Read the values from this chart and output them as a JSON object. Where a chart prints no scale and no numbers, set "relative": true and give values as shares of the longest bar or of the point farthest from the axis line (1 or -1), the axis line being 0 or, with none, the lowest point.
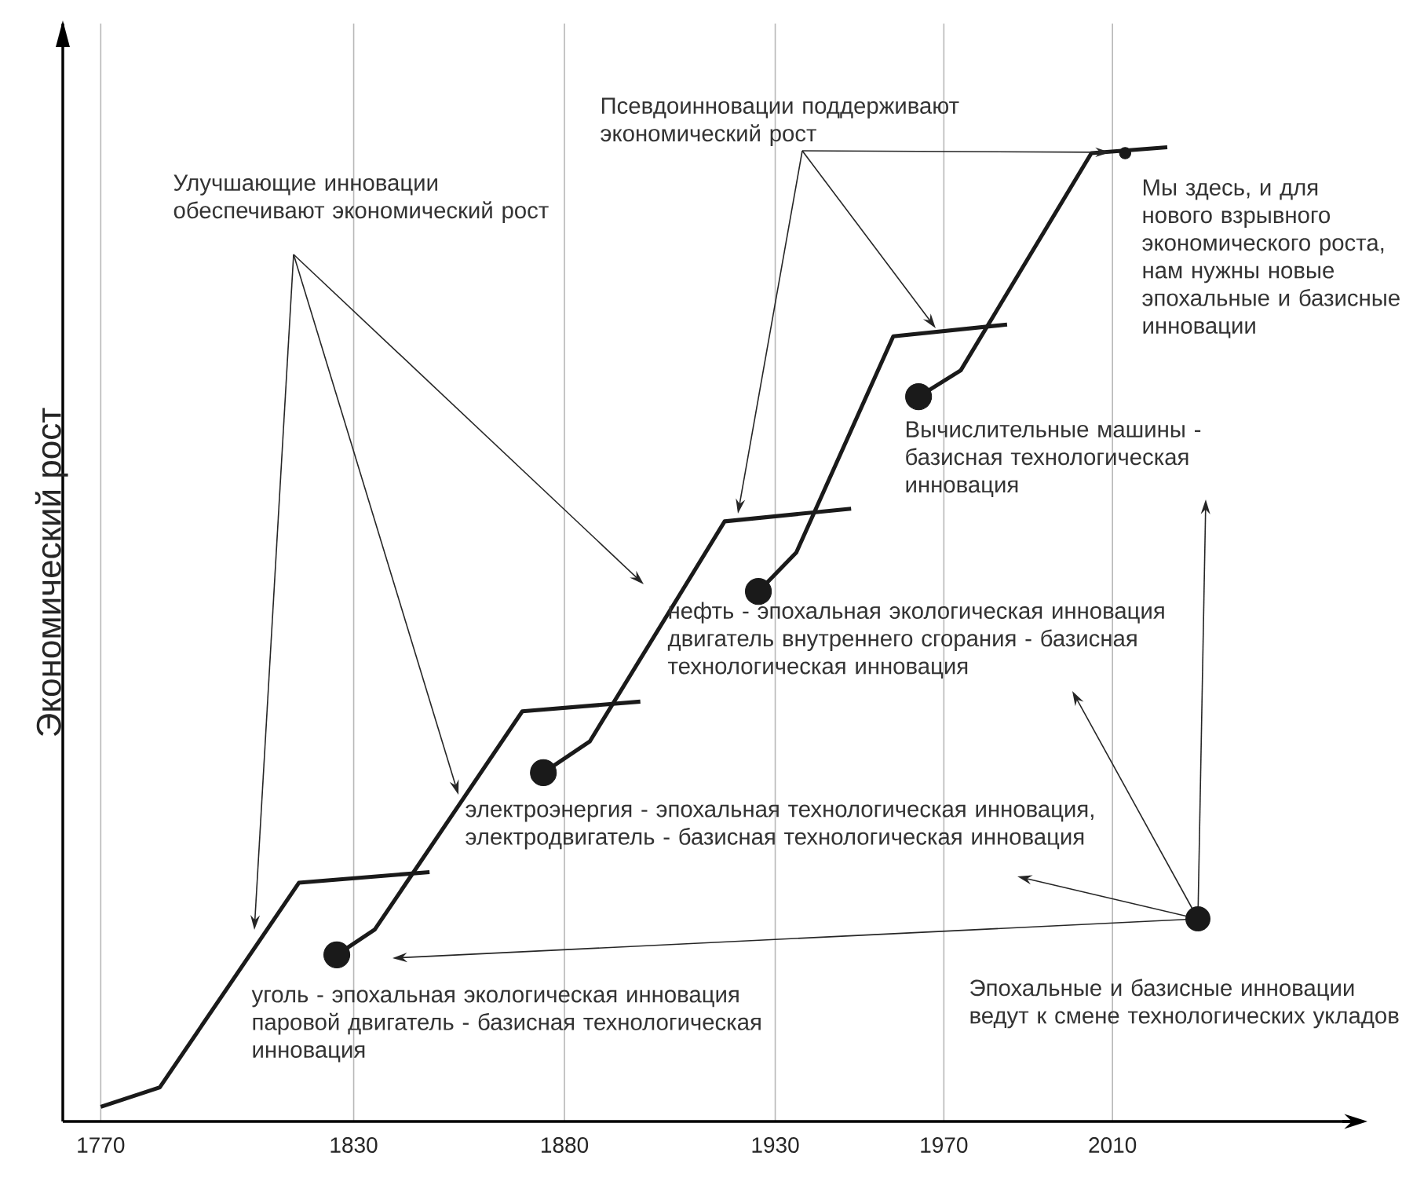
{
  "chart_data": {
    "type": "line",
    "ylabel": "Экономический рост",
    "annotations": [
      "Улучшающие инновации обеспечивают экономический рост",
      "Псевдоинновации поддерживают экономический рост",
      "Мы здесь, и для нового взрывного экономического роста, нам нужны новые эпохальные и базисные инновации",
      "Вычислительные машины - базисная технологическая инновация",
      "нефть - эпохальная экологическая инновация двигатель внутреннего сгорания - базисная технологическая инновация",
      "электроэнергия - эпохальная технологическая инновация, электродвигатель - базисная технологическая инновация",
      "уголь - эпохальная экологическая инновация паровой двигатель - базисная технологическая инновация",
      "Эпохальные и базисные инновации ведут к смене технологических укладов"
    ],
    "xlim": [
      1761,
      2069
    ],
    "xticks": [
      1770,
      1830,
      1880,
      1930,
      1970,
      2010
    ],
    "grid": "x",
    "relative": true,
    "series": [
      {
        "x": [
          1770,
          1784,
          1817,
          1848
        ],
        "values": [
          0.015,
          0.035,
          0.245,
          0.256
        ],
        "color": "#1a1a1a"
      },
      {
        "x": [
          1826,
          1835,
          1870,
          1898
        ],
        "values": [
          0.171,
          0.197,
          0.421,
          0.431
        ],
        "color": "#1a1a1a"
      },
      {
        "x": [
          1875,
          1886,
          1918,
          1948
        ],
        "values": [
          0.358,
          0.39,
          0.616,
          0.629
        ],
        "color": "#1a1a1a"
      },
      {
        "x": [
          1926,
          1935,
          1958,
          1985
        ],
        "values": [
          0.544,
          0.584,
          0.806,
          0.818
        ],
        "color": "#1a1a1a"
      },
      {
        "x": [
          1964,
          1974,
          2005,
          2023
        ],
        "values": [
          0.744,
          0.771,
          0.994,
          1
        ],
        "color": "#1a1a1a"
      },
      {
        "type": "bubble",
        "x": [
          1826,
          1875,
          1926,
          1964,
          2013
        ],
        "values": [
          0.171,
          0.358,
          0.544,
          0.744,
          0.994
        ],
        "sizes": [
          1,
          1,
          1,
          1,
          0.19
        ],
        "color": "#1a1a1a"
      }
    ]
  }
}
